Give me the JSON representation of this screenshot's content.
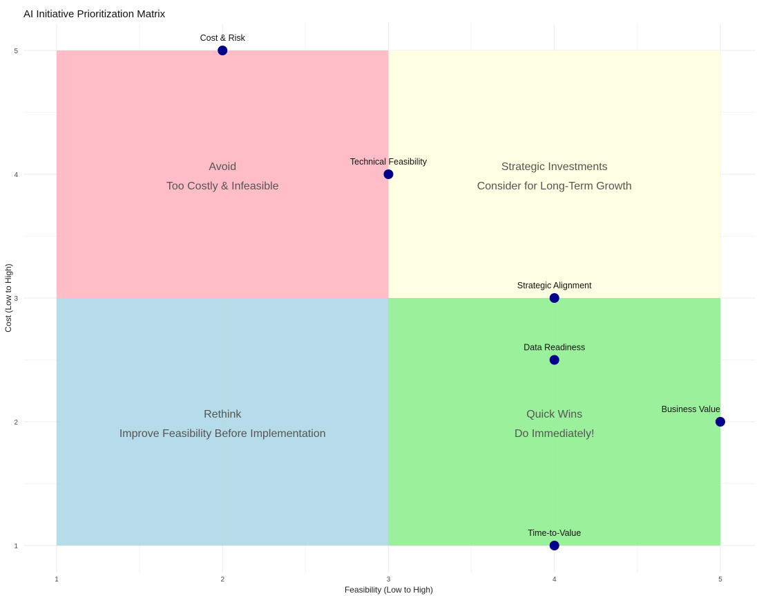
{
  "chart_data": {
    "type": "scatter",
    "title": "AI Initiative Prioritization Matrix",
    "xlabel": "Feasibility (Low to High)",
    "ylabel": "Cost (Low to High)",
    "xlim": [
      1,
      5
    ],
    "ylim": [
      1,
      5
    ],
    "x_ticks": [
      "1",
      "2",
      "3",
      "4",
      "5"
    ],
    "y_ticks": [
      "1",
      "2",
      "3",
      "4",
      "5"
    ],
    "grid": true,
    "point_color": "#00008B",
    "quadrants": [
      {
        "x": [
          1,
          3
        ],
        "y": [
          3,
          5
        ],
        "color": "#FFB6C1",
        "lines": [
          "Avoid",
          "Too Costly & Infeasible"
        ]
      },
      {
        "x": [
          3,
          5
        ],
        "y": [
          3,
          5
        ],
        "color": "#FFFFE0",
        "lines": [
          "Strategic Investments",
          "Consider for Long-Term Growth"
        ]
      },
      {
        "x": [
          1,
          3
        ],
        "y": [
          1,
          3
        ],
        "color": "#ADD8E6",
        "lines": [
          "Rethink",
          "Improve Feasibility Before Implementation"
        ]
      },
      {
        "x": [
          3,
          5
        ],
        "y": [
          1,
          3
        ],
        "color": "#90EE90",
        "lines": [
          "Quick Wins",
          "Do Immediately!"
        ]
      }
    ],
    "points": [
      {
        "label": "Cost & Risk",
        "x": 2,
        "y": 5
      },
      {
        "label": "Technical Feasibility",
        "x": 3,
        "y": 4
      },
      {
        "label": "Strategic Alignment",
        "x": 4,
        "y": 3
      },
      {
        "label": "Data Readiness",
        "x": 4,
        "y": 2.5
      },
      {
        "label": "Business Value",
        "x": 5,
        "y": 2
      },
      {
        "label": "Time-to-Value",
        "x": 4,
        "y": 1
      }
    ]
  }
}
